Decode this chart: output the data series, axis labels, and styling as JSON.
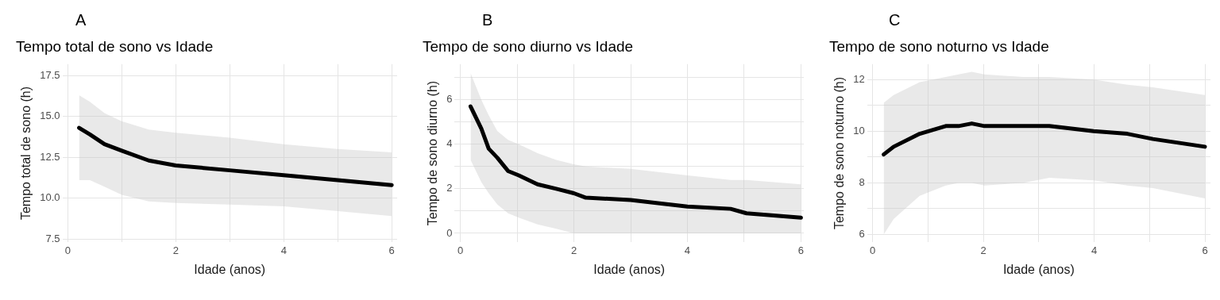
{
  "chart_data": [
    {
      "type": "line",
      "title": "Tempo total de sono vs Idade",
      "xlabel": "Idade (anos)",
      "ylabel": "Tempo total de sono (h)",
      "annotations": [
        "A"
      ],
      "series": [
        {
          "color": "#000000",
          "x": [
            0.21,
            0.41,
            0.68,
            1.0,
            1.5,
            2.0,
            3.0,
            4.0,
            5.0,
            6.0
          ],
          "values": [
            14.3,
            13.9,
            13.3,
            12.9,
            12.3,
            12.0,
            11.7,
            11.4,
            11.1,
            10.8
          ],
          "lower": [
            11.1,
            11.1,
            10.7,
            10.2,
            9.8,
            9.7,
            9.6,
            9.5,
            9.2,
            8.9
          ],
          "upper": [
            16.3,
            15.9,
            15.2,
            14.7,
            14.2,
            14.0,
            13.7,
            13.3,
            13.0,
            12.8
          ]
        }
      ],
      "xlim": [
        -0.1,
        6.1
      ],
      "xticks": [
        0,
        {
          "value": 1,
          "label": null
        },
        2,
        {
          "value": 3,
          "label": null
        },
        4,
        {
          "value": 5,
          "label": null
        },
        6
      ],
      "ylim": [
        7.3,
        18.2
      ],
      "yticks": [
        7.5,
        {
          "value": 10,
          "label": "10.0"
        },
        12.5,
        {
          "value": 15,
          "label": "15.0"
        },
        17.5
      ],
      "grid": true,
      "legend": false,
      "marker": "none",
      "line_style": "solid"
    },
    {
      "type": "line",
      "title": "Tempo de sono diurno vs Idade",
      "xlabel": "Idade (anos)",
      "ylabel": "Tempo de sono diurno (h)",
      "annotations": [
        "B"
      ],
      "series": [
        {
          "color": "#000000",
          "x": [
            0.18,
            0.37,
            0.5,
            0.65,
            0.84,
            1.03,
            1.36,
            1.69,
            2.0,
            2.21,
            3.0,
            4.0,
            4.76,
            5.04,
            6.0
          ],
          "values": [
            5.7,
            4.7,
            3.8,
            3.4,
            2.8,
            2.6,
            2.2,
            2.0,
            1.8,
            1.6,
            1.5,
            1.2,
            1.1,
            0.9,
            0.7
          ],
          "lower": [
            3.3,
            2.3,
            1.8,
            1.3,
            0.9,
            0.7,
            0.4,
            0.2,
            0.0,
            0.0,
            0.0,
            0.0,
            0.0,
            0.0,
            0.0
          ],
          "upper": [
            7.2,
            6.0,
            5.3,
            4.6,
            4.2,
            4.0,
            3.6,
            3.3,
            3.1,
            3.0,
            2.9,
            2.6,
            2.4,
            2.4,
            2.2
          ]
        }
      ],
      "xlim": [
        -0.1,
        6.05
      ],
      "xticks": [
        0,
        {
          "value": 1,
          "label": null
        },
        2,
        {
          "value": 3,
          "label": null
        },
        4,
        {
          "value": 5,
          "label": null
        },
        6
      ],
      "ylim": [
        -0.4,
        7.6
      ],
      "yticks": [
        0,
        {
          "value": 1,
          "label": null
        },
        2,
        {
          "value": 3,
          "label": null
        },
        4,
        {
          "value": 5,
          "label": null
        },
        6,
        {
          "value": 7,
          "label": null
        }
      ],
      "grid": true,
      "legend": false,
      "marker": "none",
      "line_style": "solid"
    },
    {
      "type": "line",
      "title": "Tempo de sono noturno vs Idade",
      "xlabel": "Idade (anos)",
      "ylabel": "Tempo de sono noturno (h)",
      "annotations": [
        "C"
      ],
      "series": [
        {
          "color": "#000000",
          "x": [
            0.2,
            0.38,
            0.85,
            1.32,
            1.55,
            1.79,
            2.02,
            2.72,
            3.19,
            3.99,
            4.6,
            5.06,
            6.0
          ],
          "values": [
            9.1,
            9.4,
            9.9,
            10.2,
            10.2,
            10.3,
            10.2,
            10.2,
            10.2,
            10.0,
            9.9,
            9.7,
            9.4
          ],
          "lower": [
            6.0,
            6.6,
            7.5,
            7.9,
            8.0,
            8.0,
            7.9,
            8.0,
            8.2,
            8.1,
            7.9,
            7.8,
            7.4
          ],
          "upper": [
            11.1,
            11.4,
            11.9,
            12.1,
            12.2,
            12.3,
            12.2,
            12.1,
            12.1,
            12.0,
            11.8,
            11.7,
            11.4
          ]
        }
      ],
      "xlim": [
        -0.1,
        6.1
      ],
      "xticks": [
        0,
        {
          "value": 1,
          "label": null
        },
        2,
        {
          "value": 3,
          "label": null
        },
        4,
        {
          "value": 5,
          "label": null
        },
        6
      ],
      "ylim": [
        5.7,
        12.6
      ],
      "yticks": [
        6,
        {
          "value": 7,
          "label": null
        },
        8,
        {
          "value": 9,
          "label": null
        },
        10,
        {
          "value": 11,
          "label": null
        },
        12
      ],
      "grid": true,
      "legend": false,
      "marker": "none",
      "line_style": "solid"
    }
  ]
}
